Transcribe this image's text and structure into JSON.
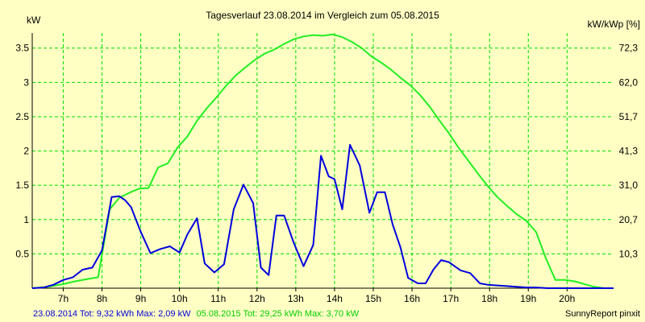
{
  "chart_data": {
    "type": "line",
    "title": "Tagesverlauf 23.08.2014 im Vergleich zum 05.08.2015",
    "ylabel_left": "kW",
    "ylabel_right": "kW/kWp [%]",
    "x_ticks": [
      "7h",
      "8h",
      "9h",
      "10h",
      "11h",
      "12h",
      "13h",
      "14h",
      "15h",
      "16h",
      "17h",
      "18h",
      "19h",
      "20h"
    ],
    "x_tick_values": [
      7,
      8,
      9,
      10,
      11,
      12,
      13,
      14,
      15,
      16,
      17,
      18,
      19,
      20
    ],
    "xlim": [
      6.2,
      21.2
    ],
    "ylim": [
      0,
      3.72
    ],
    "y_ticks_left": [
      "0.5",
      "1",
      "1.5",
      "2",
      "2.5",
      "3",
      "3.5"
    ],
    "y_tick_values_left": [
      0.5,
      1,
      1.5,
      2,
      2.5,
      3,
      3.5
    ],
    "y_ticks_right": [
      "10,3",
      "20,7",
      "31,0",
      "41,3",
      "51,7",
      "62,0",
      "72,3"
    ],
    "y_tick_values_right": [
      0.5,
      1,
      1.5,
      2,
      2.5,
      3,
      3.5
    ],
    "grid": true,
    "colors": {
      "background": "#ffffc4",
      "grid": "#00dd00",
      "series_2014": "#0000dd",
      "series_2015": "#22ee22"
    },
    "series": [
      {
        "name": "23.08.2014",
        "color": "#0000dd",
        "x": [
          6.2,
          6.5,
          6.75,
          7.0,
          7.25,
          7.5,
          7.75,
          8.0,
          8.25,
          8.45,
          8.6,
          8.75,
          9.0,
          9.25,
          9.5,
          9.75,
          10.0,
          10.2,
          10.45,
          10.65,
          10.9,
          11.15,
          11.4,
          11.65,
          11.9,
          12.1,
          12.3,
          12.5,
          12.7,
          12.95,
          13.2,
          13.45,
          13.65,
          13.85,
          14.0,
          14.2,
          14.4,
          14.65,
          14.9,
          15.1,
          15.3,
          15.5,
          15.7,
          15.9,
          16.15,
          16.35,
          16.55,
          16.75,
          16.95,
          17.25,
          17.5,
          17.75,
          17.95,
          18.2,
          18.45,
          18.7,
          18.95,
          19.2,
          19.5,
          19.75,
          20.0,
          20.25,
          20.5,
          21.2
        ],
        "y": [
          0.0,
          0.01,
          0.05,
          0.12,
          0.16,
          0.27,
          0.3,
          0.55,
          1.33,
          1.34,
          1.28,
          1.18,
          0.82,
          0.51,
          0.57,
          0.61,
          0.52,
          0.78,
          1.02,
          0.36,
          0.23,
          0.35,
          1.15,
          1.51,
          1.24,
          0.3,
          0.19,
          1.06,
          1.06,
          0.66,
          0.32,
          0.63,
          1.93,
          1.63,
          1.59,
          1.15,
          2.09,
          1.79,
          1.1,
          1.4,
          1.4,
          0.93,
          0.6,
          0.15,
          0.07,
          0.07,
          0.27,
          0.41,
          0.38,
          0.26,
          0.22,
          0.07,
          0.05,
          0.04,
          0.03,
          0.02,
          0.01,
          0.01,
          0.0,
          0.0,
          0.0,
          0.0,
          0.0,
          0.0
        ]
      },
      {
        "name": "05.08.2015",
        "color": "#22ee22",
        "x": [
          6.2,
          6.6,
          7.0,
          7.3,
          7.6,
          7.9,
          8.2,
          8.45,
          8.7,
          8.95,
          9.2,
          9.45,
          9.7,
          9.95,
          10.2,
          10.45,
          10.7,
          10.95,
          11.2,
          11.45,
          11.7,
          11.95,
          12.2,
          12.45,
          12.7,
          12.95,
          13.2,
          13.45,
          13.7,
          13.95,
          14.2,
          14.45,
          14.7,
          14.95,
          15.2,
          15.45,
          15.7,
          15.95,
          16.2,
          16.45,
          16.7,
          16.95,
          17.2,
          17.45,
          17.7,
          17.95,
          18.2,
          18.45,
          18.7,
          18.95,
          19.2,
          19.45,
          19.7,
          19.95,
          20.2,
          20.45,
          20.7,
          20.95,
          21.2
        ],
        "y": [
          0.0,
          0.02,
          0.06,
          0.1,
          0.13,
          0.16,
          1.15,
          1.32,
          1.39,
          1.45,
          1.46,
          1.76,
          1.82,
          2.05,
          2.21,
          2.44,
          2.62,
          2.78,
          2.95,
          3.1,
          3.22,
          3.33,
          3.42,
          3.48,
          3.56,
          3.63,
          3.67,
          3.69,
          3.68,
          3.7,
          3.66,
          3.59,
          3.5,
          3.38,
          3.29,
          3.19,
          3.07,
          2.96,
          2.82,
          2.65,
          2.45,
          2.26,
          2.05,
          1.86,
          1.67,
          1.49,
          1.33,
          1.2,
          1.08,
          0.98,
          0.82,
          0.44,
          0.12,
          0.12,
          0.1,
          0.06,
          0.02,
          0.0,
          0.0
        ]
      }
    ],
    "footer": {
      "series_2014_label": "23.08.2014 Tot: 9,32 kWh Max: 2,09 kW",
      "series_2015_label": "05.08.2015 Tot: 29,25 kWh Max: 3,70 kW",
      "credit": "SunnyReport pinxit"
    }
  }
}
